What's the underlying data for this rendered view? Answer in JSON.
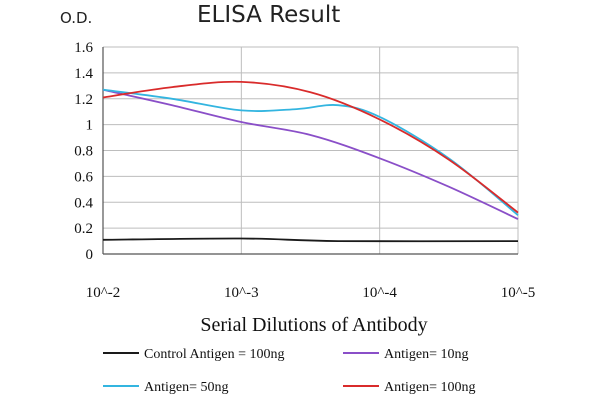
{
  "chart_data": {
    "type": "line",
    "title": "ELISA Result",
    "ylabel": "O.D.",
    "xlabel": "Serial Dilutions of Antibody",
    "x_categories": [
      "10^-2",
      "10^-3",
      "10^-4",
      "10^-5"
    ],
    "y_ticks": [
      "0",
      "0.2",
      "0.4",
      "0.6",
      "0.8",
      "1",
      "1.2",
      "1.4",
      "1.6"
    ],
    "ylim": [
      0,
      1.6
    ],
    "grid": "vertical gridlines at each dilution, horizontal gridlines at each y tick",
    "legend_position": "bottom",
    "series": [
      {
        "name": "Control Antigen = 100ng",
        "color": "#1a1a1a",
        "points": [
          [
            0,
            0.11
          ],
          [
            1,
            0.12
          ],
          [
            1.7,
            0.1
          ],
          [
            3,
            0.1
          ]
        ]
      },
      {
        "name": "Antigen= 10ng",
        "color": "#8a4fc8",
        "points": [
          [
            0,
            1.27
          ],
          [
            0.5,
            1.15
          ],
          [
            1,
            1.02
          ],
          [
            1.5,
            0.92
          ],
          [
            2,
            0.74
          ],
          [
            2.5,
            0.52
          ],
          [
            3,
            0.27
          ]
        ]
      },
      {
        "name": "Antigen= 50ng",
        "color": "#33b5e0",
        "points": [
          [
            0,
            1.27
          ],
          [
            0.5,
            1.2
          ],
          [
            1,
            1.11
          ],
          [
            1.4,
            1.12
          ],
          [
            1.7,
            1.15
          ],
          [
            2,
            1.06
          ],
          [
            2.5,
            0.74
          ],
          [
            3,
            0.3
          ]
        ]
      },
      {
        "name": "Antigen= 100ng",
        "color": "#d92b2b",
        "points": [
          [
            0,
            1.21
          ],
          [
            0.5,
            1.29
          ],
          [
            1,
            1.33
          ],
          [
            1.5,
            1.25
          ],
          [
            2,
            1.04
          ],
          [
            2.5,
            0.73
          ],
          [
            3,
            0.32
          ]
        ]
      }
    ]
  }
}
